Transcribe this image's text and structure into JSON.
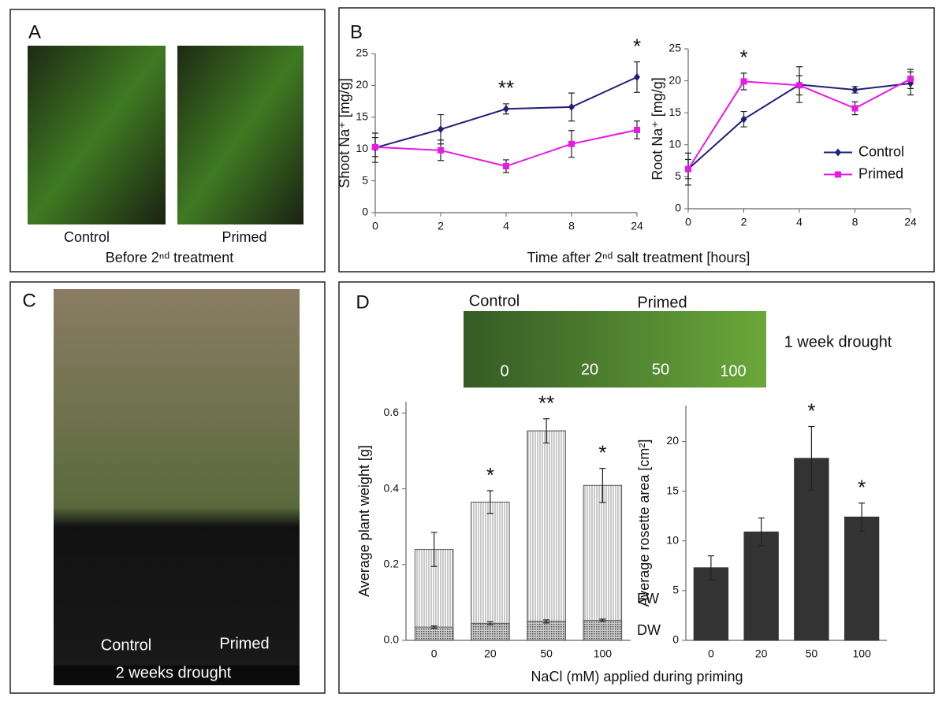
{
  "panels": {
    "letters": [
      "A",
      "B",
      "C",
      "D"
    ],
    "a": {
      "labels": [
        "Control",
        "Primed"
      ],
      "caption": "Before 2ⁿᵈ treatment"
    },
    "b": {
      "xlabel": "Time after 2ⁿᵈ salt treatment [hours]"
    },
    "c": {
      "labels": [
        "Control",
        "Primed"
      ],
      "caption": "2 weeks drought"
    },
    "d": {
      "labels": [
        "Control",
        "Primed",
        "1 week drought"
      ],
      "photo_numbers": [
        "0",
        "20",
        "50",
        "100"
      ],
      "xlabel": "NaCl (mM) applied during priming"
    }
  },
  "chart_data": [
    {
      "type": "line",
      "ylabel": "Shoot Na⁺ [mg/g]",
      "categories": [
        "0",
        "2",
        "4",
        "8",
        "24"
      ],
      "ylim": [
        0,
        25
      ],
      "yticks": [
        0,
        5,
        10,
        15,
        20,
        25
      ],
      "series": [
        {
          "name": "Control",
          "color": "#1f1f78",
          "marker": "diamond",
          "values": [
            10.2,
            13.1,
            16.3,
            16.6,
            21.3
          ],
          "errors": [
            2.3,
            2.3,
            0.8,
            2.2,
            2.4
          ]
        },
        {
          "name": "Primed",
          "color": "#e619e6",
          "marker": "square",
          "values": [
            10.3,
            9.8,
            7.3,
            10.8,
            13.0
          ],
          "errors": [
            1.5,
            1.6,
            1.0,
            2.1,
            1.4
          ]
        }
      ],
      "significance": [
        null,
        null,
        "**",
        null,
        "*"
      ]
    },
    {
      "type": "line",
      "ylabel": "Root Na⁺ [mg/g]",
      "categories": [
        "0",
        "2",
        "4",
        "8",
        "24"
      ],
      "ylim": [
        0,
        25
      ],
      "yticks": [
        0,
        5,
        10,
        15,
        20,
        25
      ],
      "legend": "right",
      "series": [
        {
          "name": "Control",
          "color": "#1f1f78",
          "marker": "diamond",
          "values": [
            6.2,
            14.0,
            19.4,
            18.6,
            19.6
          ],
          "errors": [
            2.5,
            1.2,
            2.8,
            0.5,
            1.8
          ]
        },
        {
          "name": "Primed",
          "color": "#e619e6",
          "marker": "square",
          "values": [
            6.2,
            19.9,
            19.3,
            15.7,
            20.3
          ],
          "errors": [
            1.5,
            1.3,
            1.5,
            1.0,
            1.5
          ]
        }
      ],
      "significance": [
        null,
        "*",
        null,
        null,
        null
      ]
    },
    {
      "type": "bar",
      "ylabel": "Average plant weight [g]",
      "categories": [
        "0",
        "20",
        "50",
        "100"
      ],
      "ylim": [
        0,
        0.63
      ],
      "yticks": [
        {
          "value": 0,
          "label": "0.0"
        },
        0.2,
        0.4,
        0.6
      ],
      "series": [
        {
          "name": "FW",
          "color": "#777777",
          "hatch": "vertical",
          "values": [
            0.24,
            0.365,
            0.553,
            0.409
          ],
          "errors": [
            0.045,
            0.03,
            0.032,
            0.045
          ]
        },
        {
          "name": "DW",
          "color": "#444444",
          "hatch": "dots",
          "values": [
            0.035,
            0.045,
            0.05,
            0.053
          ],
          "errors": [
            0.003,
            0.004,
            0.004,
            0.003
          ]
        }
      ],
      "significance": [
        null,
        "*",
        "**",
        "*"
      ]
    },
    {
      "type": "bar",
      "ylabel": "Average rosette area [cm²]",
      "categories": [
        "0",
        "20",
        "50",
        "100"
      ],
      "ylim": [
        0,
        23.6
      ],
      "yticks": [
        0,
        5,
        10,
        15,
        20
      ],
      "series": [
        {
          "color": "#333333",
          "values": [
            7.3,
            10.9,
            18.3,
            12.4
          ],
          "errors": [
            1.2,
            1.4,
            3.2,
            1.4
          ]
        }
      ],
      "significance": [
        null,
        null,
        "*",
        "*"
      ]
    }
  ]
}
